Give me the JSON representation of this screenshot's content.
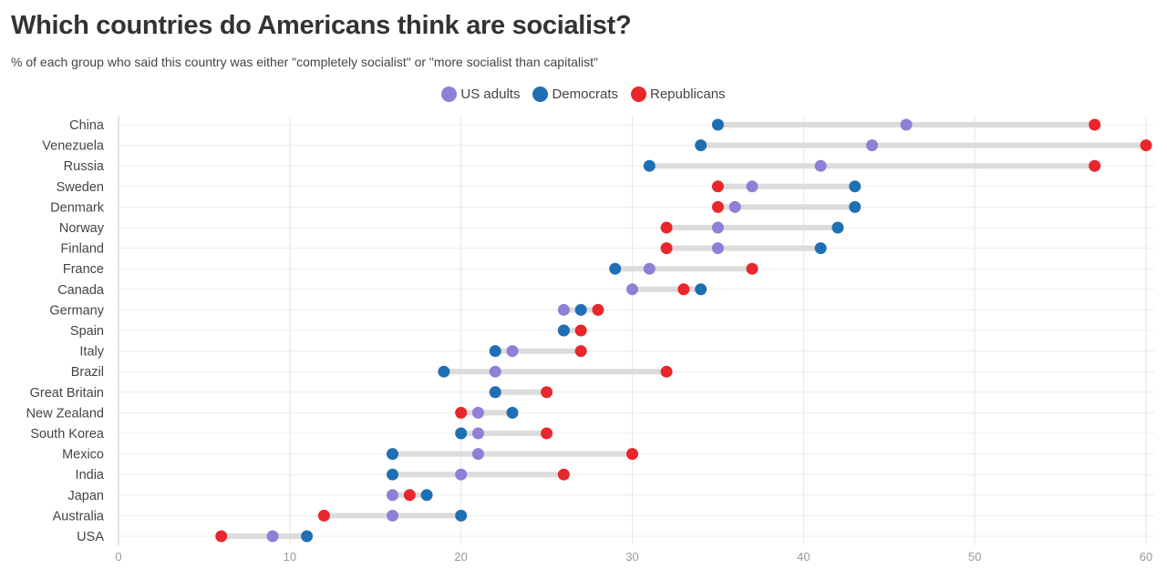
{
  "title": "Which countries do Americans think are socialist?",
  "subtitle": "% of each group who said this country was either \"completely socialist\" or \"more socialist than capitalist\"",
  "legend": [
    {
      "label": "US adults",
      "color": "#8f7fd6"
    },
    {
      "label": "Democrats",
      "color": "#1f6fb5"
    },
    {
      "label": "Republicans",
      "color": "#e8262b"
    }
  ],
  "chart_data": {
    "type": "dumbbell",
    "xlim": [
      0,
      60
    ],
    "x_ticks": [
      0,
      10,
      20,
      30,
      40,
      50,
      60
    ],
    "grid": true,
    "legend_position": "top-center",
    "categories": [
      "China",
      "Venezuela",
      "Russia",
      "Sweden",
      "Denmark",
      "Norway",
      "Finland",
      "France",
      "Canada",
      "Germany",
      "Spain",
      "Italy",
      "Brazil",
      "Great Britain",
      "New Zealand",
      "South Korea",
      "Mexico",
      "India",
      "Japan",
      "Australia",
      "USA"
    ],
    "series": [
      {
        "name": "US adults",
        "color": "#8f7fd6",
        "values": [
          46,
          44,
          41,
          37,
          36,
          35,
          35,
          31,
          30,
          26,
          26,
          23,
          22,
          22,
          21,
          21,
          21,
          20,
          16,
          16,
          9
        ]
      },
      {
        "name": "Democrats",
        "color": "#1f6fb5",
        "values": [
          35,
          34,
          31,
          43,
          43,
          42,
          41,
          29,
          34,
          27,
          26,
          22,
          19,
          22,
          23,
          20,
          16,
          16,
          18,
          20,
          11
        ]
      },
      {
        "name": "Republicans",
        "color": "#e8262b",
        "values": [
          57,
          60,
          57,
          35,
          35,
          32,
          32,
          37,
          33,
          28,
          27,
          27,
          32,
          25,
          20,
          25,
          30,
          26,
          17,
          12,
          6
        ]
      }
    ]
  }
}
